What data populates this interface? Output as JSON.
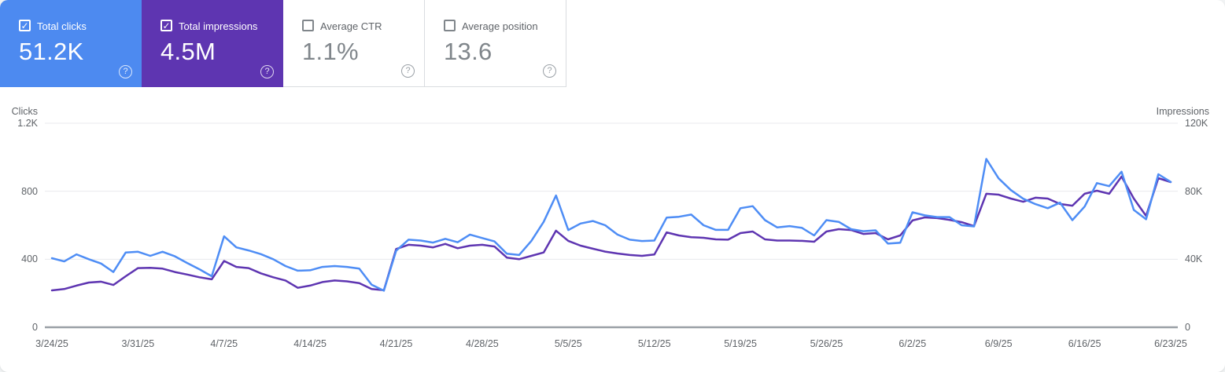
{
  "colors": {
    "clicks_card_bg": "#4d8af0",
    "impressions_card_bg": "#5e35b1",
    "clicks_line": "#4e8df5",
    "impressions_line": "#5e35b1",
    "gridline": "#e8eaed",
    "axis_line": "#9aa0a6",
    "card_border": "#dadce0"
  },
  "icons": {
    "check": "✓",
    "help": "?"
  },
  "cards": [
    {
      "id": "total-clicks",
      "label": "Total clicks",
      "value": "51.2K",
      "checked": true,
      "bg": "#4d8af0",
      "fg": "#ffffff"
    },
    {
      "id": "total-impressions",
      "label": "Total impressions",
      "value": "4.5M",
      "checked": true,
      "bg": "#5e35b1",
      "fg": "#ffffff"
    },
    {
      "id": "average-ctr",
      "label": "Average CTR",
      "value": "1.1%",
      "checked": false,
      "bg": "#ffffff",
      "fg": ""
    },
    {
      "id": "average-position",
      "label": "Average position",
      "value": "13.6",
      "checked": false,
      "bg": "#ffffff",
      "fg": ""
    }
  ],
  "chart_data": {
    "type": "line",
    "left_axis": {
      "title": "Clicks",
      "max": 1200,
      "min": 0,
      "ticks": [
        {
          "label": "1.2K",
          "value": 1200
        },
        {
          "label": "800",
          "value": 800
        },
        {
          "label": "400",
          "value": 400
        },
        {
          "label": "0",
          "value": 0
        }
      ]
    },
    "right_axis": {
      "title": "Impressions",
      "max": 120000,
      "min": 0,
      "ticks": [
        {
          "label": "120K",
          "value": 120000
        },
        {
          "label": "80K",
          "value": 80000
        },
        {
          "label": "40K",
          "value": 40000
        },
        {
          "label": "0",
          "value": 0
        }
      ]
    },
    "x_labels": [
      "3/24/25",
      "3/31/25",
      "4/7/25",
      "4/14/25",
      "4/21/25",
      "4/28/25",
      "5/5/25",
      "5/12/25",
      "5/19/25",
      "5/26/25",
      "6/2/25",
      "6/9/25",
      "6/16/25",
      "6/23/25"
    ],
    "x_label_interval_days": 7,
    "grid": true,
    "series": [
      {
        "name": "Total impressions",
        "axis": "right",
        "color": "#5e35b1",
        "values": [
          21700,
          22500,
          24500,
          26300,
          26800,
          24900,
          30000,
          34800,
          35000,
          34500,
          32500,
          31000,
          29400,
          28200,
          39000,
          35500,
          34800,
          31700,
          29400,
          27500,
          23200,
          24500,
          26600,
          27500,
          27000,
          26000,
          22500,
          21800,
          46000,
          48500,
          48000,
          47000,
          49000,
          46500,
          48000,
          48500,
          47500,
          41000,
          40000,
          42000,
          44000,
          56800,
          50800,
          48000,
          46200,
          44500,
          43400,
          42500,
          42000,
          42800,
          55800,
          54000,
          53000,
          52600,
          51700,
          51500,
          55400,
          56300,
          51700,
          51000,
          51000,
          50800,
          50300,
          56300,
          57700,
          57200,
          54900,
          55400,
          51700,
          54000,
          62800,
          64600,
          64200,
          63200,
          61800,
          59500,
          78500,
          78000,
          75700,
          73800,
          76200,
          75700,
          72500,
          71500,
          78500,
          80300,
          78500,
          88600,
          75700,
          65500,
          87700,
          85400
        ]
      },
      {
        "name": "Total clicks",
        "axis": "left",
        "color": "#4e8df5",
        "values": [
          406,
          387,
          429,
          400,
          375,
          325,
          440,
          444,
          420,
          444,
          417,
          378,
          341,
          300,
          535,
          470,
          452,
          430,
          400,
          360,
          333,
          335,
          355,
          360,
          355,
          345,
          250,
          215,
          450,
          515,
          510,
          498,
          520,
          500,
          545,
          525,
          505,
          433,
          425,
          508,
          620,
          775,
          572,
          610,
          625,
          600,
          545,
          515,
          507,
          510,
          645,
          650,
          663,
          600,
          573,
          573,
          700,
          712,
          630,
          587,
          595,
          585,
          540,
          630,
          620,
          577,
          565,
          570,
          492,
          497,
          676,
          658,
          648,
          648,
          600,
          593,
          990,
          876,
          807,
          756,
          724,
          700,
          733,
          630,
          710,
          848,
          830,
          915,
          690,
          635,
          900,
          855
        ]
      }
    ]
  }
}
